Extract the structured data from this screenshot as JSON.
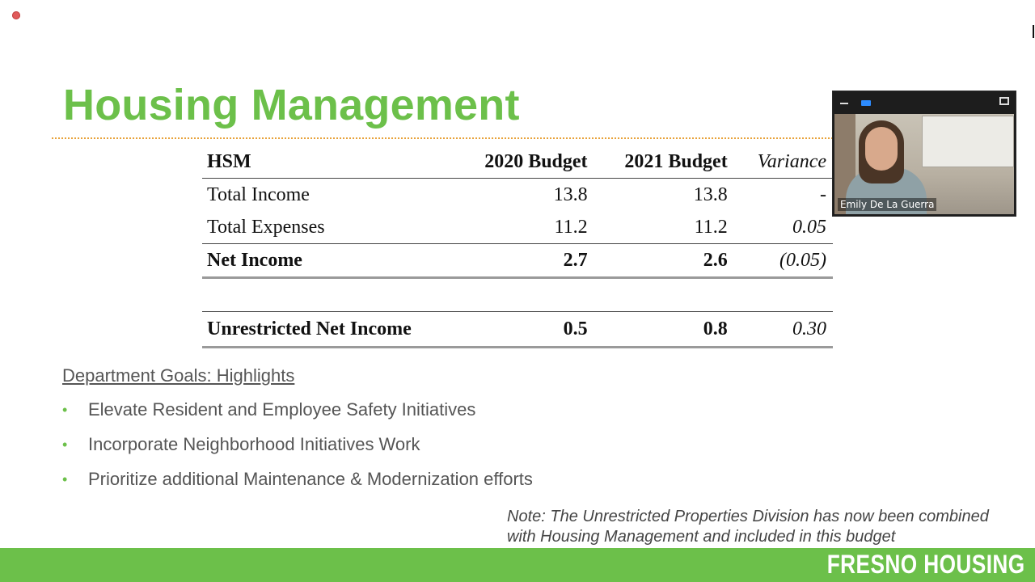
{
  "slide": {
    "title": "Housing Management",
    "table": {
      "headers": [
        "HSM",
        "2020 Budget",
        "2021 Budget",
        "Variance"
      ],
      "rows": [
        {
          "label": "Total Income",
          "b2020": "13.8",
          "b2021": "13.8",
          "variance": "-"
        },
        {
          "label": "Total Expenses",
          "b2020": "11.2",
          "b2021": "11.2",
          "variance": "0.05"
        },
        {
          "label": "Net Income",
          "b2020": "2.7",
          "b2021": "2.6",
          "variance": "(0.05)"
        },
        {
          "label": "Unrestricted Net Income",
          "b2020": "0.5",
          "b2021": "0.8",
          "variance": "0.30"
        }
      ]
    },
    "goals_heading": "Department Goals: Highlights",
    "goals": [
      "Elevate Resident and Employee Safety Initiatives",
      "Incorporate Neighborhood Initiatives Work",
      "Prioritize additional Maintenance & Modernization efforts"
    ],
    "note_line1": "Note: The Unrestricted Properties Division has now been combined",
    "note_line2": "with Housing Management and included in this budget",
    "footer_brand": "FRESNO HOUSING"
  },
  "video_tile": {
    "participant_name": "Emily De La Guerra"
  },
  "colors": {
    "accent_green": "#6cc04a",
    "dotted_rule": "#e8a23a",
    "zoom_blue": "#2d8cff"
  },
  "icons": {
    "recording": "recording-dot-icon",
    "minimize": "minimize-icon",
    "camera": "camera-icon",
    "maximize": "maximize-icon"
  }
}
